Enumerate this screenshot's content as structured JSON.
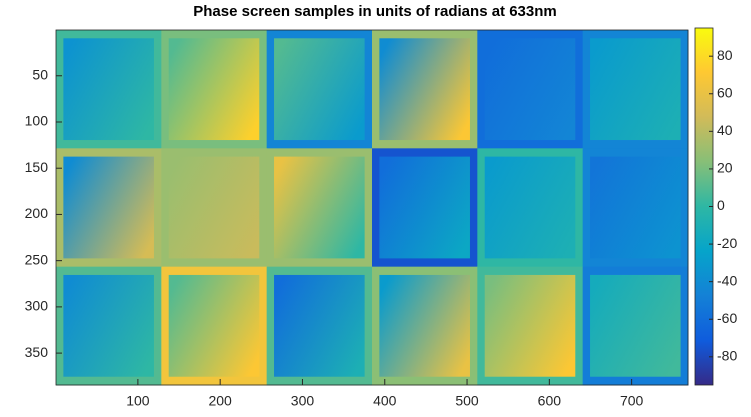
{
  "chart_data": {
    "type": "image",
    "title": "Phase screen samples in units of radians at 633nm",
    "colormap": "parula",
    "xlim": [
      0.5,
      768.5
    ],
    "ylim": [
      0.5,
      384.5
    ],
    "y_reversed": true,
    "xticks": [
      100,
      200,
      300,
      400,
      500,
      600,
      700
    ],
    "yticks": [
      50,
      100,
      150,
      200,
      250,
      300,
      350
    ],
    "clim": [
      -95,
      95
    ],
    "colorbar_ticks": [
      -80,
      -60,
      -40,
      -20,
      0,
      20,
      40,
      60,
      80
    ],
    "tile_size": 128,
    "background": [
      [
        5,
        20,
        -45,
        30,
        -60,
        -45
      ],
      [
        35,
        30,
        30,
        -75,
        0,
        -45
      ],
      [
        10,
        65,
        10,
        25,
        5,
        -50
      ]
    ],
    "patch_left": [
      [
        -35,
        10,
        10,
        -40,
        -60,
        -30
      ],
      [
        -40,
        30,
        60,
        -60,
        -30,
        -55
      ],
      [
        -40,
        10,
        -60,
        -30,
        20,
        -15
      ]
    ],
    "patch_right": [
      [
        0,
        75,
        -30,
        70,
        -45,
        -10
      ],
      [
        50,
        45,
        0,
        -20,
        -10,
        -35
      ],
      [
        0,
        70,
        -10,
        60,
        70,
        5
      ]
    ]
  }
}
